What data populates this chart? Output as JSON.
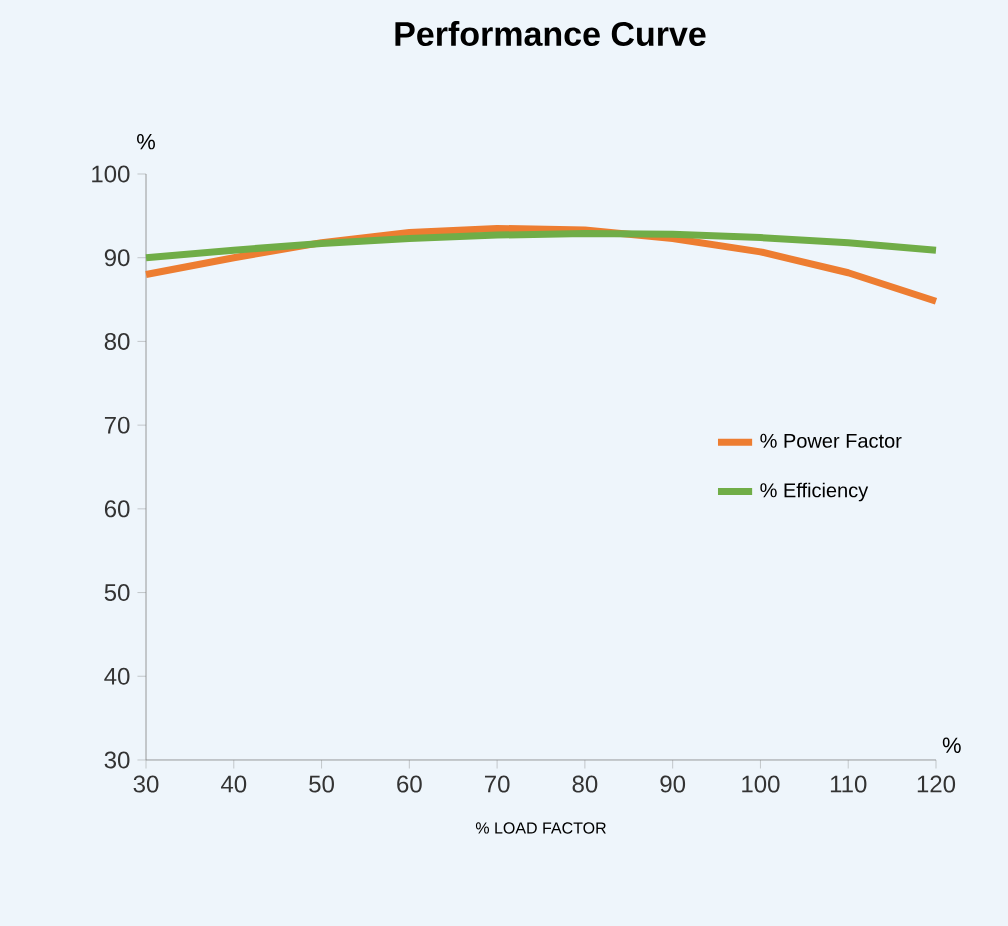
{
  "chart_data": {
    "type": "line",
    "title": "Performance Curve",
    "xlabel": "% LOAD FACTOR",
    "ylabel": "%",
    "annotations": [
      "%"
    ],
    "x": [
      30,
      40,
      50,
      60,
      70,
      80,
      90,
      100,
      110,
      120
    ],
    "series": [
      {
        "name": "% Power Factor",
        "color": "#ed7d31",
        "values": [
          88,
          90,
          91.8,
          93,
          93.5,
          93.3,
          92.3,
          90.7,
          88.2,
          84.8
        ]
      },
      {
        "name": "% Efficiency",
        "color": "#70ad47",
        "values": [
          90,
          90.9,
          91.7,
          92.3,
          92.7,
          92.9,
          92.8,
          92.4,
          91.8,
          90.9
        ]
      }
    ],
    "xlim": [
      30,
      120
    ],
    "xticks": [
      30,
      40,
      50,
      60,
      70,
      80,
      90,
      100,
      110,
      120
    ],
    "ylim": [
      30,
      100
    ],
    "yticks": [
      30,
      40,
      50,
      60,
      70,
      80,
      90,
      100
    ],
    "grid": false,
    "legend": "right",
    "marker": "none",
    "line_style": "solid"
  }
}
